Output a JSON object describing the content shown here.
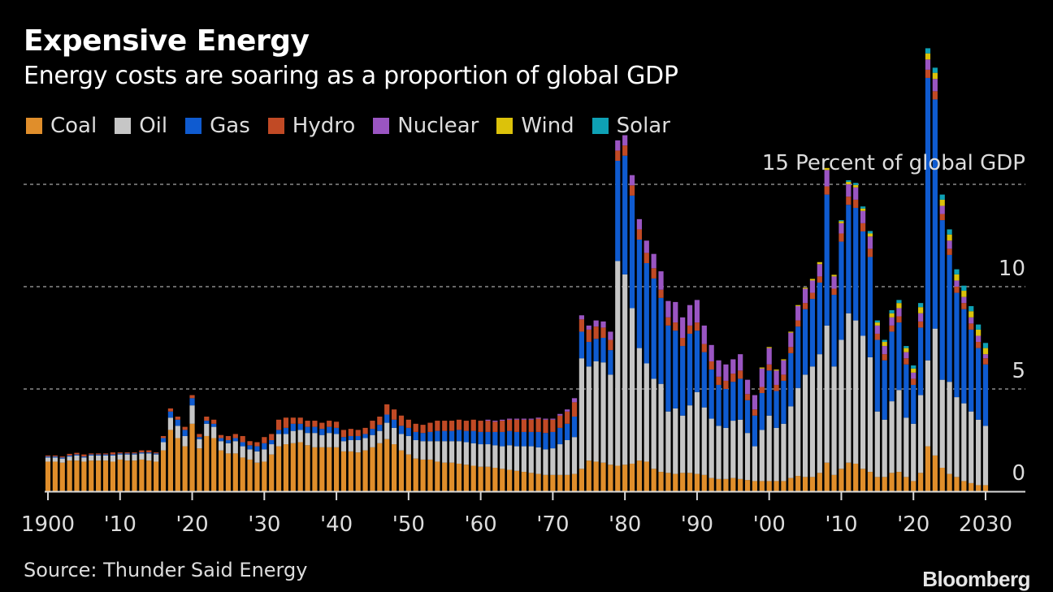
{
  "header": {
    "title": "Expensive Energy",
    "subtitle": "Energy costs are soaring as a proportion of global GDP"
  },
  "footer": {
    "source": "Source: Thunder Said Energy",
    "brand": "Bloomberg"
  },
  "chart_data": {
    "type": "bar",
    "stacked": true,
    "title": "Expensive Energy",
    "subtitle": "Energy costs are soaring as a proportion of global GDP",
    "ylabel": "Percent of global GDP",
    "xlabel": "",
    "ylim": [
      0,
      15
    ],
    "yticks": [
      0,
      5,
      10,
      15
    ],
    "ytick_labels": [
      "0",
      "5",
      "10",
      "15 Percent of global GDP"
    ],
    "xlim": [
      1900,
      2030
    ],
    "xticks": [
      1900,
      1910,
      1920,
      1930,
      1940,
      1950,
      1960,
      1970,
      1980,
      1990,
      2000,
      2010,
      2020,
      2030
    ],
    "xtick_labels": [
      "1900",
      "'10",
      "'20",
      "'30",
      "'40",
      "'50",
      "'60",
      "'70",
      "'80",
      "'90",
      "'00",
      "'10",
      "'20",
      "2030"
    ],
    "grid": "horizontal-dashed",
    "legend_position": "top-left",
    "legend": [
      {
        "name": "Coal",
        "color": "#e08e2b"
      },
      {
        "name": "Oil",
        "color": "#c6c6c6"
      },
      {
        "name": "Gas",
        "color": "#0f5bd0"
      },
      {
        "name": "Hydro",
        "color": "#c14a25"
      },
      {
        "name": "Nuclear",
        "color": "#9a55c2"
      },
      {
        "name": "Wind",
        "color": "#dcc20a"
      },
      {
        "name": "Solar",
        "color": "#0ea1b5"
      }
    ],
    "x": [
      1900,
      1901,
      1902,
      1903,
      1904,
      1905,
      1906,
      1907,
      1908,
      1909,
      1910,
      1911,
      1912,
      1913,
      1914,
      1915,
      1916,
      1917,
      1918,
      1919,
      1920,
      1921,
      1922,
      1923,
      1924,
      1925,
      1926,
      1927,
      1928,
      1929,
      1930,
      1931,
      1932,
      1933,
      1934,
      1935,
      1936,
      1937,
      1938,
      1939,
      1940,
      1941,
      1942,
      1943,
      1944,
      1945,
      1946,
      1947,
      1948,
      1949,
      1950,
      1951,
      1952,
      1953,
      1954,
      1955,
      1956,
      1957,
      1958,
      1959,
      1960,
      1961,
      1962,
      1963,
      1964,
      1965,
      1966,
      1967,
      1968,
      1969,
      1970,
      1971,
      1972,
      1973,
      1974,
      1975,
      1976,
      1977,
      1978,
      1979,
      1980,
      1981,
      1982,
      1983,
      1984,
      1985,
      1986,
      1987,
      1988,
      1989,
      1990,
      1991,
      1992,
      1993,
      1994,
      1995,
      1996,
      1997,
      1998,
      1999,
      2000,
      2001,
      2002,
      2003,
      2004,
      2005,
      2006,
      2007,
      2008,
      2009,
      2010,
      2011,
      2012,
      2013,
      2014,
      2015,
      2016,
      2017,
      2018,
      2019,
      2020,
      2021,
      2022,
      2023,
      2024,
      2025,
      2026,
      2027,
      2028,
      2029,
      2030
    ],
    "series": [
      {
        "name": "Coal",
        "values": [
          1.45,
          1.45,
          1.4,
          1.5,
          1.5,
          1.45,
          1.5,
          1.5,
          1.5,
          1.45,
          1.55,
          1.5,
          1.5,
          1.55,
          1.5,
          1.45,
          2.0,
          3.0,
          2.6,
          2.2,
          3.3,
          2.1,
          2.7,
          2.6,
          2.0,
          1.85,
          1.85,
          1.65,
          1.55,
          1.4,
          1.45,
          1.8,
          2.2,
          2.3,
          2.35,
          2.4,
          2.25,
          2.15,
          2.15,
          2.15,
          2.15,
          1.95,
          1.95,
          1.9,
          2.0,
          2.15,
          2.35,
          2.55,
          2.3,
          2.0,
          1.8,
          1.6,
          1.55,
          1.55,
          1.45,
          1.4,
          1.4,
          1.35,
          1.3,
          1.25,
          1.2,
          1.2,
          1.15,
          1.1,
          1.05,
          1.0,
          0.95,
          0.9,
          0.85,
          0.8,
          0.8,
          0.8,
          0.8,
          0.85,
          1.1,
          1.5,
          1.45,
          1.4,
          1.3,
          1.25,
          1.3,
          1.35,
          1.5,
          1.45,
          1.1,
          0.95,
          0.9,
          0.85,
          0.9,
          0.9,
          0.85,
          0.8,
          0.65,
          0.6,
          0.6,
          0.65,
          0.6,
          0.55,
          0.5,
          0.5,
          0.5,
          0.5,
          0.5,
          0.65,
          0.75,
          0.7,
          0.7,
          0.9,
          1.4,
          0.8,
          1.1,
          1.4,
          1.35,
          1.1,
          0.95,
          0.7,
          0.7,
          0.9,
          0.95,
          0.7,
          0.5,
          0.9,
          2.2,
          1.75,
          1.15,
          0.85,
          0.7,
          0.5,
          0.4,
          0.3,
          0.3
        ]
      },
      {
        "name": "Oil",
        "values": [
          0.2,
          0.2,
          0.2,
          0.2,
          0.25,
          0.2,
          0.25,
          0.25,
          0.25,
          0.3,
          0.25,
          0.3,
          0.3,
          0.3,
          0.35,
          0.35,
          0.4,
          0.6,
          0.6,
          0.5,
          0.9,
          0.45,
          0.6,
          0.55,
          0.45,
          0.5,
          0.6,
          0.55,
          0.5,
          0.55,
          0.6,
          0.5,
          0.6,
          0.5,
          0.6,
          0.6,
          0.6,
          0.7,
          0.6,
          0.7,
          0.65,
          0.5,
          0.55,
          0.6,
          0.6,
          0.6,
          0.6,
          0.8,
          0.8,
          0.8,
          0.9,
          0.9,
          0.9,
          0.9,
          1.0,
          1.05,
          1.05,
          1.1,
          1.1,
          1.1,
          1.1,
          1.1,
          1.1,
          1.1,
          1.2,
          1.2,
          1.25,
          1.3,
          1.3,
          1.25,
          1.3,
          1.5,
          1.7,
          1.8,
          5.4,
          4.6,
          4.9,
          4.9,
          4.4,
          10.0,
          9.3,
          7.6,
          5.5,
          4.8,
          4.4,
          4.3,
          3.0,
          3.2,
          2.8,
          3.3,
          4.0,
          3.3,
          2.9,
          2.6,
          2.5,
          2.8,
          2.9,
          2.3,
          1.7,
          2.5,
          3.2,
          2.6,
          2.8,
          3.5,
          4.3,
          5.0,
          5.4,
          5.8,
          6.7,
          5.3,
          6.3,
          7.3,
          7.0,
          6.5,
          5.6,
          3.2,
          2.8,
          3.5,
          4.0,
          2.9,
          2.8,
          3.8,
          4.2,
          6.2,
          4.3,
          4.5,
          3.9,
          3.8,
          3.5,
          3.2,
          2.9
        ]
      },
      {
        "name": "Gas",
        "values": [
          0.05,
          0.05,
          0.05,
          0.05,
          0.05,
          0.05,
          0.05,
          0.05,
          0.05,
          0.05,
          0.05,
          0.05,
          0.05,
          0.05,
          0.05,
          0.05,
          0.2,
          0.3,
          0.3,
          0.3,
          0.35,
          0.1,
          0.15,
          0.15,
          0.15,
          0.15,
          0.15,
          0.2,
          0.2,
          0.25,
          0.3,
          0.2,
          0.2,
          0.3,
          0.35,
          0.3,
          0.3,
          0.3,
          0.3,
          0.3,
          0.3,
          0.2,
          0.2,
          0.2,
          0.2,
          0.3,
          0.3,
          0.4,
          0.4,
          0.4,
          0.4,
          0.4,
          0.4,
          0.45,
          0.5,
          0.5,
          0.5,
          0.55,
          0.55,
          0.6,
          0.6,
          0.6,
          0.65,
          0.7,
          0.7,
          0.7,
          0.7,
          0.7,
          0.75,
          0.8,
          0.8,
          0.8,
          0.8,
          1.0,
          1.3,
          1.2,
          1.1,
          1.2,
          1.2,
          4.9,
          5.8,
          5.5,
          5.3,
          4.9,
          4.9,
          4.2,
          4.2,
          3.8,
          3.4,
          3.5,
          3.0,
          2.7,
          2.4,
          2.0,
          1.9,
          1.9,
          2.0,
          1.6,
          1.5,
          1.8,
          2.2,
          1.8,
          2.1,
          2.6,
          3.0,
          3.2,
          3.3,
          3.5,
          6.4,
          3.5,
          4.8,
          5.3,
          5.5,
          5.1,
          4.9,
          3.5,
          2.9,
          3.4,
          3.3,
          2.6,
          1.9,
          3.3,
          13.8,
          11.2,
          7.8,
          6.2,
          5.1,
          4.6,
          4.0,
          3.5,
          3.0
        ]
      },
      {
        "name": "Hydro",
        "values": [
          0.05,
          0.05,
          0.05,
          0.08,
          0.08,
          0.1,
          0.05,
          0.05,
          0.05,
          0.1,
          0.05,
          0.05,
          0.05,
          0.1,
          0.1,
          0.05,
          0.1,
          0.15,
          0.15,
          0.15,
          0.15,
          0.15,
          0.2,
          0.2,
          0.15,
          0.2,
          0.2,
          0.3,
          0.2,
          0.2,
          0.3,
          0.3,
          0.5,
          0.5,
          0.3,
          0.3,
          0.3,
          0.3,
          0.3,
          0.3,
          0.3,
          0.35,
          0.35,
          0.3,
          0.3,
          0.4,
          0.4,
          0.5,
          0.5,
          0.5,
          0.4,
          0.4,
          0.4,
          0.45,
          0.5,
          0.5,
          0.5,
          0.5,
          0.5,
          0.55,
          0.55,
          0.55,
          0.5,
          0.55,
          0.55,
          0.6,
          0.6,
          0.6,
          0.65,
          0.65,
          0.6,
          0.6,
          0.6,
          0.7,
          0.6,
          0.6,
          0.6,
          0.5,
          0.5,
          0.5,
          0.5,
          0.5,
          0.5,
          0.5,
          0.5,
          0.4,
          0.4,
          0.4,
          0.4,
          0.4,
          0.4,
          0.4,
          0.4,
          0.4,
          0.4,
          0.4,
          0.4,
          0.3,
          0.3,
          0.3,
          0.3,
          0.3,
          0.3,
          0.3,
          0.3,
          0.3,
          0.3,
          0.3,
          0.4,
          0.3,
          0.4,
          0.4,
          0.4,
          0.4,
          0.4,
          0.3,
          0.3,
          0.3,
          0.3,
          0.3,
          0.3,
          0.3,
          0.4,
          0.4,
          0.3,
          0.3,
          0.3,
          0.3,
          0.3,
          0.3,
          0.3
        ]
      },
      {
        "name": "Nuclear",
        "values": [
          0,
          0,
          0,
          0,
          0,
          0,
          0,
          0,
          0,
          0,
          0,
          0,
          0,
          0,
          0,
          0,
          0,
          0,
          0,
          0,
          0,
          0,
          0,
          0,
          0,
          0,
          0,
          0,
          0,
          0,
          0,
          0,
          0,
          0,
          0,
          0,
          0,
          0,
          0,
          0,
          0,
          0,
          0,
          0,
          0,
          0,
          0,
          0,
          0,
          0,
          0,
          0,
          0,
          0,
          0,
          0,
          0,
          0,
          0,
          0,
          0,
          0.05,
          0.05,
          0.05,
          0.05,
          0.05,
          0.05,
          0.05,
          0.05,
          0.05,
          0.05,
          0.08,
          0.1,
          0.2,
          0.2,
          0.2,
          0.3,
          0.3,
          0.4,
          0.5,
          0.5,
          0.5,
          0.5,
          0.6,
          0.7,
          0.9,
          0.8,
          1.0,
          1.0,
          1.0,
          1.1,
          0.9,
          0.8,
          0.8,
          0.8,
          0.7,
          0.8,
          0.7,
          0.7,
          0.9,
          0.8,
          0.7,
          0.7,
          0.7,
          0.7,
          0.7,
          0.6,
          0.6,
          0.8,
          0.6,
          0.5,
          0.6,
          0.6,
          0.6,
          0.6,
          0.4,
          0.4,
          0.4,
          0.4,
          0.3,
          0.3,
          0.4,
          0.5,
          0.6,
          0.4,
          0.4,
          0.3,
          0.3,
          0.3,
          0.3,
          0.2
        ]
      },
      {
        "name": "Wind",
        "values": [
          0,
          0,
          0,
          0,
          0,
          0,
          0,
          0,
          0,
          0,
          0,
          0,
          0,
          0,
          0,
          0,
          0,
          0,
          0,
          0,
          0,
          0,
          0,
          0,
          0,
          0,
          0,
          0,
          0,
          0,
          0,
          0,
          0,
          0,
          0,
          0,
          0,
          0,
          0,
          0,
          0,
          0,
          0,
          0,
          0,
          0,
          0,
          0,
          0,
          0,
          0,
          0,
          0,
          0,
          0,
          0,
          0,
          0,
          0,
          0,
          0,
          0,
          0,
          0,
          0,
          0,
          0,
          0,
          0,
          0,
          0,
          0,
          0,
          0,
          0,
          0,
          0,
          0,
          0,
          0,
          0,
          0,
          0,
          0,
          0,
          0,
          0,
          0,
          0,
          0,
          0,
          0,
          0,
          0,
          0,
          0,
          0,
          0,
          0,
          0.05,
          0.05,
          0.05,
          0.05,
          0.05,
          0.05,
          0.05,
          0.08,
          0.1,
          0.1,
          0.08,
          0.1,
          0.12,
          0.12,
          0.12,
          0.15,
          0.15,
          0.2,
          0.2,
          0.25,
          0.2,
          0.2,
          0.3,
          0.3,
          0.3,
          0.3,
          0.3,
          0.3,
          0.3,
          0.3,
          0.3,
          0.3
        ]
      },
      {
        "name": "Solar",
        "values": [
          0,
          0,
          0,
          0,
          0,
          0,
          0,
          0,
          0,
          0,
          0,
          0,
          0,
          0,
          0,
          0,
          0,
          0,
          0,
          0,
          0,
          0,
          0,
          0,
          0,
          0,
          0,
          0,
          0,
          0,
          0,
          0,
          0,
          0,
          0,
          0,
          0,
          0,
          0,
          0,
          0,
          0,
          0,
          0,
          0,
          0,
          0,
          0,
          0,
          0,
          0,
          0,
          0,
          0,
          0,
          0,
          0,
          0,
          0,
          0,
          0,
          0,
          0,
          0,
          0,
          0,
          0,
          0,
          0,
          0,
          0,
          0,
          0,
          0,
          0,
          0,
          0,
          0,
          0,
          0,
          0,
          0,
          0,
          0,
          0,
          0,
          0,
          0,
          0,
          0,
          0,
          0,
          0,
          0,
          0,
          0,
          0,
          0,
          0,
          0,
          0,
          0,
          0,
          0,
          0,
          0,
          0,
          0,
          0,
          0,
          0.05,
          0.08,
          0.1,
          0.1,
          0.12,
          0.1,
          0.1,
          0.15,
          0.15,
          0.1,
          0.15,
          0.2,
          0.25,
          0.25,
          0.25,
          0.25,
          0.25,
          0.25,
          0.25,
          0.25,
          0.25
        ]
      }
    ]
  }
}
